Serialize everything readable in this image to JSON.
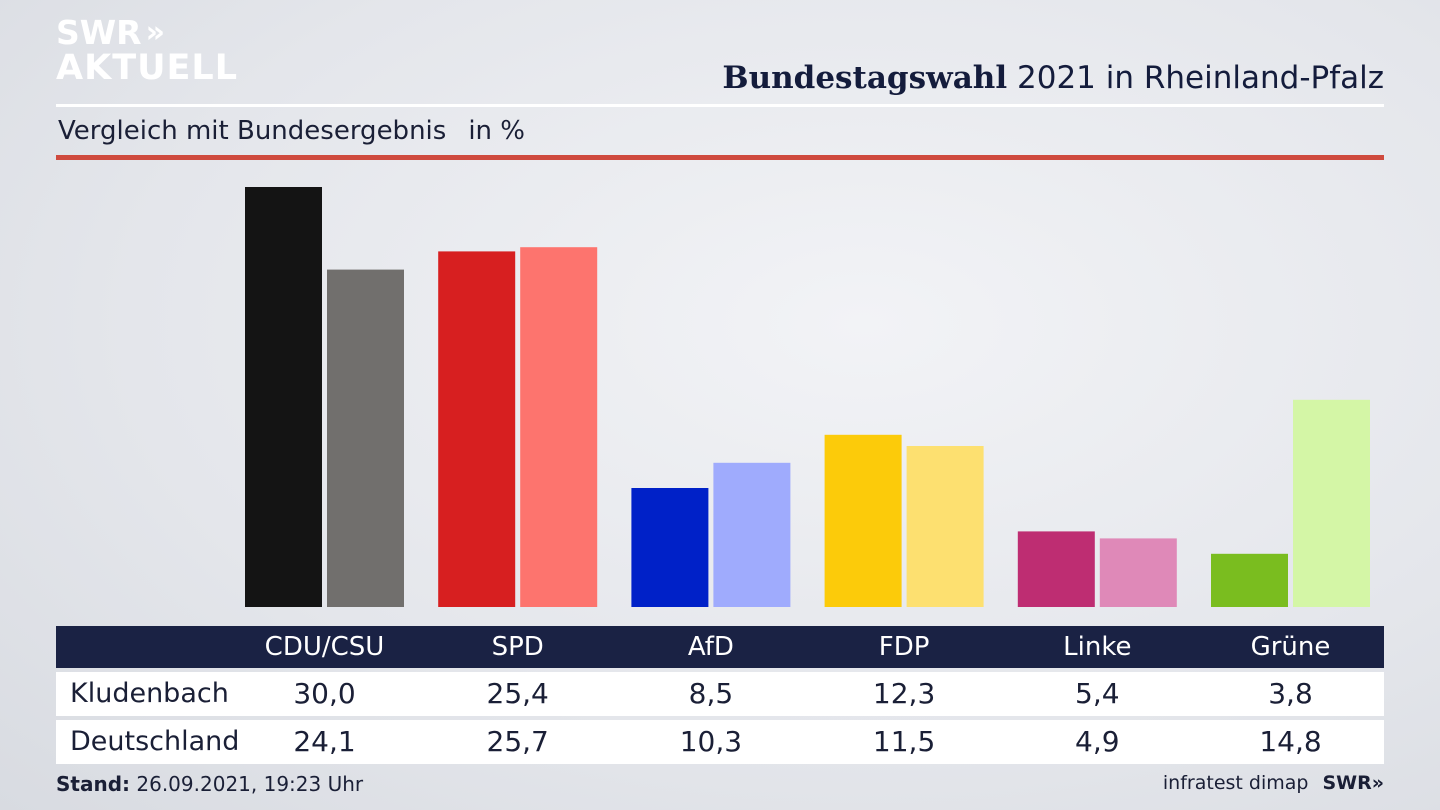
{
  "branding": {
    "logo_line1": "SWR",
    "logo_chevrons": "»",
    "logo_line2": "AKTUELL",
    "footer_logo": "SWR»"
  },
  "header": {
    "title_bold": "Bundestagswahl",
    "title_rest": "2021 in Rheinland-Pfalz",
    "subtitle": "Vergleich mit Bundesergebnis",
    "unit": "in %"
  },
  "footer": {
    "stand_label": "Stand:",
    "stand_value": "26.09.2021, 19:23 Uhr",
    "source": "infratest dimap"
  },
  "chart_data": {
    "type": "bar",
    "categories": [
      "CDU/CSU",
      "SPD",
      "AfD",
      "FDP",
      "Linke",
      "Grüne"
    ],
    "series": [
      {
        "name": "Kludenbach",
        "values": [
          30.0,
          25.4,
          8.5,
          12.3,
          5.4,
          3.8
        ],
        "labels": [
          "30,0",
          "25,4",
          "8,5",
          "12,3",
          "5,4",
          "3,8"
        ]
      },
      {
        "name": "Deutschland",
        "values": [
          24.1,
          25.7,
          10.3,
          11.5,
          4.9,
          14.8
        ],
        "labels": [
          "24,1",
          "25,7",
          "10,3",
          "11,5",
          "4,9",
          "14,8"
        ]
      }
    ],
    "colors_primary": [
      "#141414",
      "#d71f20",
      "#0021c8",
      "#fccb0a",
      "#be2d72",
      "#7abd1f"
    ],
    "colors_secondary": [
      "#716f6d",
      "#fd746e",
      "#9fabfd",
      "#fde070",
      "#df89b8",
      "#d4f6a6"
    ],
    "ylim": [
      0,
      30
    ],
    "grid": false,
    "legend": "table-below"
  }
}
